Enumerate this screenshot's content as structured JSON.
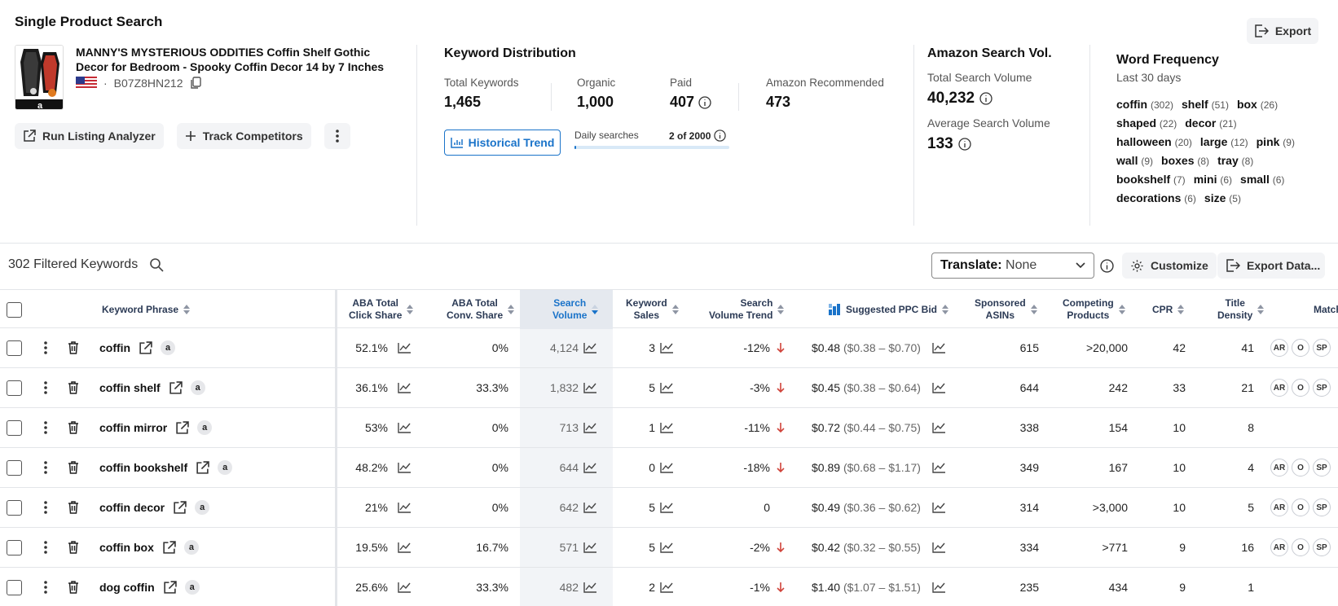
{
  "page_title": "Single Product Search",
  "export_label": "Export",
  "product": {
    "title": "MANNY'S MYSTERIOUS ODDITIES Coffin Shelf Gothic Decor for Bedroom - Spooky Coffin Decor 14 by 7 Inches",
    "dot": "·",
    "asin": "B07Z8HN212"
  },
  "actions": {
    "run_listing_analyzer": "Run Listing Analyzer",
    "track_competitors": "Track Competitors"
  },
  "keyword_distribution": {
    "title": "Keyword Distribution",
    "total_keywords_label": "Total Keywords",
    "total_keywords": "1,465",
    "organic_label": "Organic",
    "organic": "1,000",
    "paid_label": "Paid",
    "paid": "407",
    "amazon_recommended_label": "Amazon Recommended",
    "amazon_recommended": "473",
    "historical_trend": "Historical Trend",
    "daily_searches_label": "Daily searches",
    "daily_searches_value": "2 of 2000",
    "daily_searches_fraction": 0.001
  },
  "amazon_search_vol": {
    "title": "Amazon Search Vol.",
    "total_label": "Total Search Volume",
    "total": "40,232",
    "average_label": "Average Search Volume",
    "average": "133"
  },
  "word_frequency": {
    "title": "Word Frequency",
    "subtitle": "Last 30 days",
    "words": [
      {
        "word": "coffin",
        "count": "(302)"
      },
      {
        "word": "shelf",
        "count": "(51)"
      },
      {
        "word": "box",
        "count": "(26)"
      },
      {
        "word": "shaped",
        "count": "(22)"
      },
      {
        "word": "decor",
        "count": "(21)"
      },
      {
        "word": "halloween",
        "count": "(20)"
      },
      {
        "word": "large",
        "count": "(12)"
      },
      {
        "word": "pink",
        "count": "(9)"
      },
      {
        "word": "wall",
        "count": "(9)"
      },
      {
        "word": "boxes",
        "count": "(8)"
      },
      {
        "word": "tray",
        "count": "(8)"
      },
      {
        "word": "bookshelf",
        "count": "(7)"
      },
      {
        "word": "mini",
        "count": "(6)"
      },
      {
        "word": "small",
        "count": "(6)"
      },
      {
        "word": "decorations",
        "count": "(6)"
      },
      {
        "word": "size",
        "count": "(5)"
      }
    ]
  },
  "toolbar": {
    "filtered_keywords": "302 Filtered Keywords",
    "translate_label": "Translate:",
    "translate_value": "None",
    "customize": "Customize",
    "export_data": "Export Data..."
  },
  "columns": {
    "keyword_phrase": "Keyword Phrase",
    "aba_click_1": "ABA Total",
    "aba_click_2": "Click Share",
    "aba_conv_1": "ABA Total",
    "aba_conv_2": "Conv. Share",
    "sv_1": "Search",
    "sv_2": "Volume",
    "ks_1": "Keyword",
    "ks_2": "Sales",
    "svt_1": "Search",
    "svt_2": "Volume Trend",
    "ppc": "Suggested PPC Bid",
    "sa_1": "Sponsored",
    "sa_2": "ASINs",
    "cp_1": "Competing",
    "cp_2": "Products",
    "cpr": "CPR",
    "td_1": "Title",
    "td_2": "Density",
    "match": "Match"
  },
  "amz_letter": "a",
  "match_tags": [
    "AR",
    "O",
    "SP"
  ],
  "rows": [
    {
      "keyword": "coffin",
      "click_share": "52.1%",
      "conv_share": "0%",
      "search_volume": "4,124",
      "keyword_sales": "3",
      "trend": "-12%",
      "trend_down": true,
      "ppc": "$0.48",
      "ppc_range": "($0.38 – $0.70)",
      "sponsored_asins": "615",
      "competing": ">20,000",
      "cpr": "42",
      "title_density": "41",
      "tags": true
    },
    {
      "keyword": "coffin shelf",
      "click_share": "36.1%",
      "conv_share": "33.3%",
      "search_volume": "1,832",
      "keyword_sales": "5",
      "trend": "-3%",
      "trend_down": true,
      "ppc": "$0.45",
      "ppc_range": "($0.38 – $0.64)",
      "sponsored_asins": "644",
      "competing": "242",
      "cpr": "33",
      "title_density": "21",
      "tags": true
    },
    {
      "keyword": "coffin mirror",
      "click_share": "53%",
      "conv_share": "0%",
      "search_volume": "713",
      "keyword_sales": "1",
      "trend": "-11%",
      "trend_down": true,
      "ppc": "$0.72",
      "ppc_range": "($0.44 – $0.75)",
      "sponsored_asins": "338",
      "competing": "154",
      "cpr": "10",
      "title_density": "8",
      "tags": false
    },
    {
      "keyword": "coffin bookshelf",
      "click_share": "48.2%",
      "conv_share": "0%",
      "search_volume": "644",
      "keyword_sales": "0",
      "trend": "-18%",
      "trend_down": true,
      "ppc": "$0.89",
      "ppc_range": "($0.68 – $1.17)",
      "sponsored_asins": "349",
      "competing": "167",
      "cpr": "10",
      "title_density": "4",
      "tags": true
    },
    {
      "keyword": "coffin decor",
      "click_share": "21%",
      "conv_share": "0%",
      "search_volume": "642",
      "keyword_sales": "5",
      "trend": "0",
      "trend_down": false,
      "ppc": "$0.49",
      "ppc_range": "($0.36 – $0.62)",
      "sponsored_asins": "314",
      "competing": ">3,000",
      "cpr": "10",
      "title_density": "5",
      "tags": true
    },
    {
      "keyword": "coffin box",
      "click_share": "19.5%",
      "conv_share": "16.7%",
      "search_volume": "571",
      "keyword_sales": "5",
      "trend": "-2%",
      "trend_down": true,
      "ppc": "$0.42",
      "ppc_range": "($0.32 – $0.55)",
      "sponsored_asins": "334",
      "competing": ">771",
      "cpr": "9",
      "title_density": "16",
      "tags": true
    },
    {
      "keyword": "dog coffin",
      "click_share": "25.6%",
      "conv_share": "33.3%",
      "search_volume": "482",
      "keyword_sales": "2",
      "trend": "-1%",
      "trend_down": true,
      "ppc": "$1.40",
      "ppc_range": "($1.07 – $1.51)",
      "sponsored_asins": "235",
      "competing": "434",
      "cpr": "9",
      "title_density": "1",
      "tags": false
    }
  ],
  "colors": {
    "accent": "#1a73c9",
    "down_arrow": "#d0433a"
  }
}
